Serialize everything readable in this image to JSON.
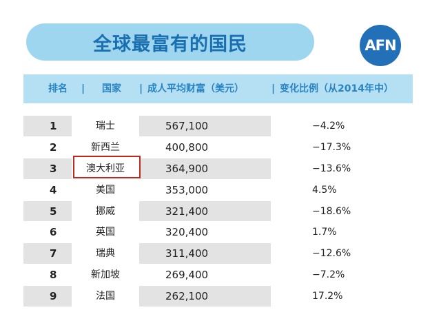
{
  "title": "全球最富有的国民",
  "logo_text": "AFN",
  "header": {
    "rank": "排名",
    "country": "国家",
    "wealth": "成人平均财富（美元）",
    "change": "变化比例（从2014年中）",
    "separator": "|"
  },
  "rows": [
    {
      "rank": "1",
      "country": "瑞士",
      "wealth": "567,100",
      "change": "−4.2%"
    },
    {
      "rank": "2",
      "country": "新西兰",
      "wealth": "400,800",
      "change": "−17.3%"
    },
    {
      "rank": "3",
      "country": "澳大利亚",
      "wealth": "364,900",
      "change": "−13.6%"
    },
    {
      "rank": "4",
      "country": "美国",
      "wealth": "353,000",
      "change": "4.5%"
    },
    {
      "rank": "5",
      "country": "挪威",
      "wealth": "321,400",
      "change": "−18.6%"
    },
    {
      "rank": "6",
      "country": "英国",
      "wealth": "320,400",
      "change": "1.7%"
    },
    {
      "rank": "7",
      "country": "瑞典",
      "wealth": "311,400",
      "change": "−12.6%"
    },
    {
      "rank": "8",
      "country": "新加坡",
      "wealth": "269,400",
      "change": "−7.2%"
    },
    {
      "rank": "9",
      "country": "法国",
      "wealth": "262,100",
      "change": "17.2%"
    }
  ],
  "colors": {
    "title_pill": "#9fd6ef",
    "title_text": "#1a6fb0",
    "header_bg": "#b5e0f3",
    "header_text": "#2a84c3",
    "row_shade": "#e3e3e3",
    "highlight_border": "#c0281f",
    "logo_bg": "#2170b8"
  }
}
